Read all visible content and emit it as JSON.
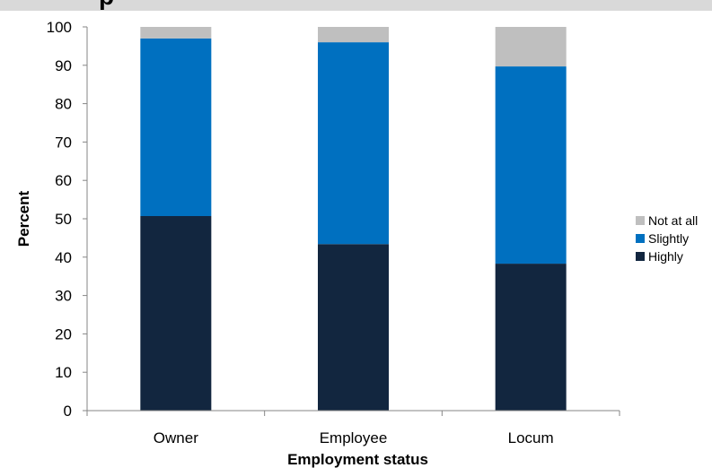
{
  "chart_data": {
    "type": "bar",
    "stacked": true,
    "categories": [
      "Owner",
      "Employee",
      "Locum"
    ],
    "series": [
      {
        "name": "Highly",
        "values": [
          50.7,
          43.4,
          38.3
        ],
        "color": "#12263f"
      },
      {
        "name": "Slightly",
        "values": [
          46.3,
          52.6,
          51.4
        ],
        "color": "#0070c0"
      },
      {
        "name": "Not at all",
        "values": [
          3.0,
          4.0,
          10.3
        ],
        "color": "#bfbfbf"
      }
    ],
    "title": "",
    "xlabel": "Employment status",
    "ylabel": "Percent",
    "ylim": [
      0,
      100
    ],
    "yticks": [
      0,
      10,
      20,
      30,
      40,
      50,
      60,
      70,
      80,
      90,
      100
    ],
    "grid": false,
    "legend_position": "right"
  }
}
